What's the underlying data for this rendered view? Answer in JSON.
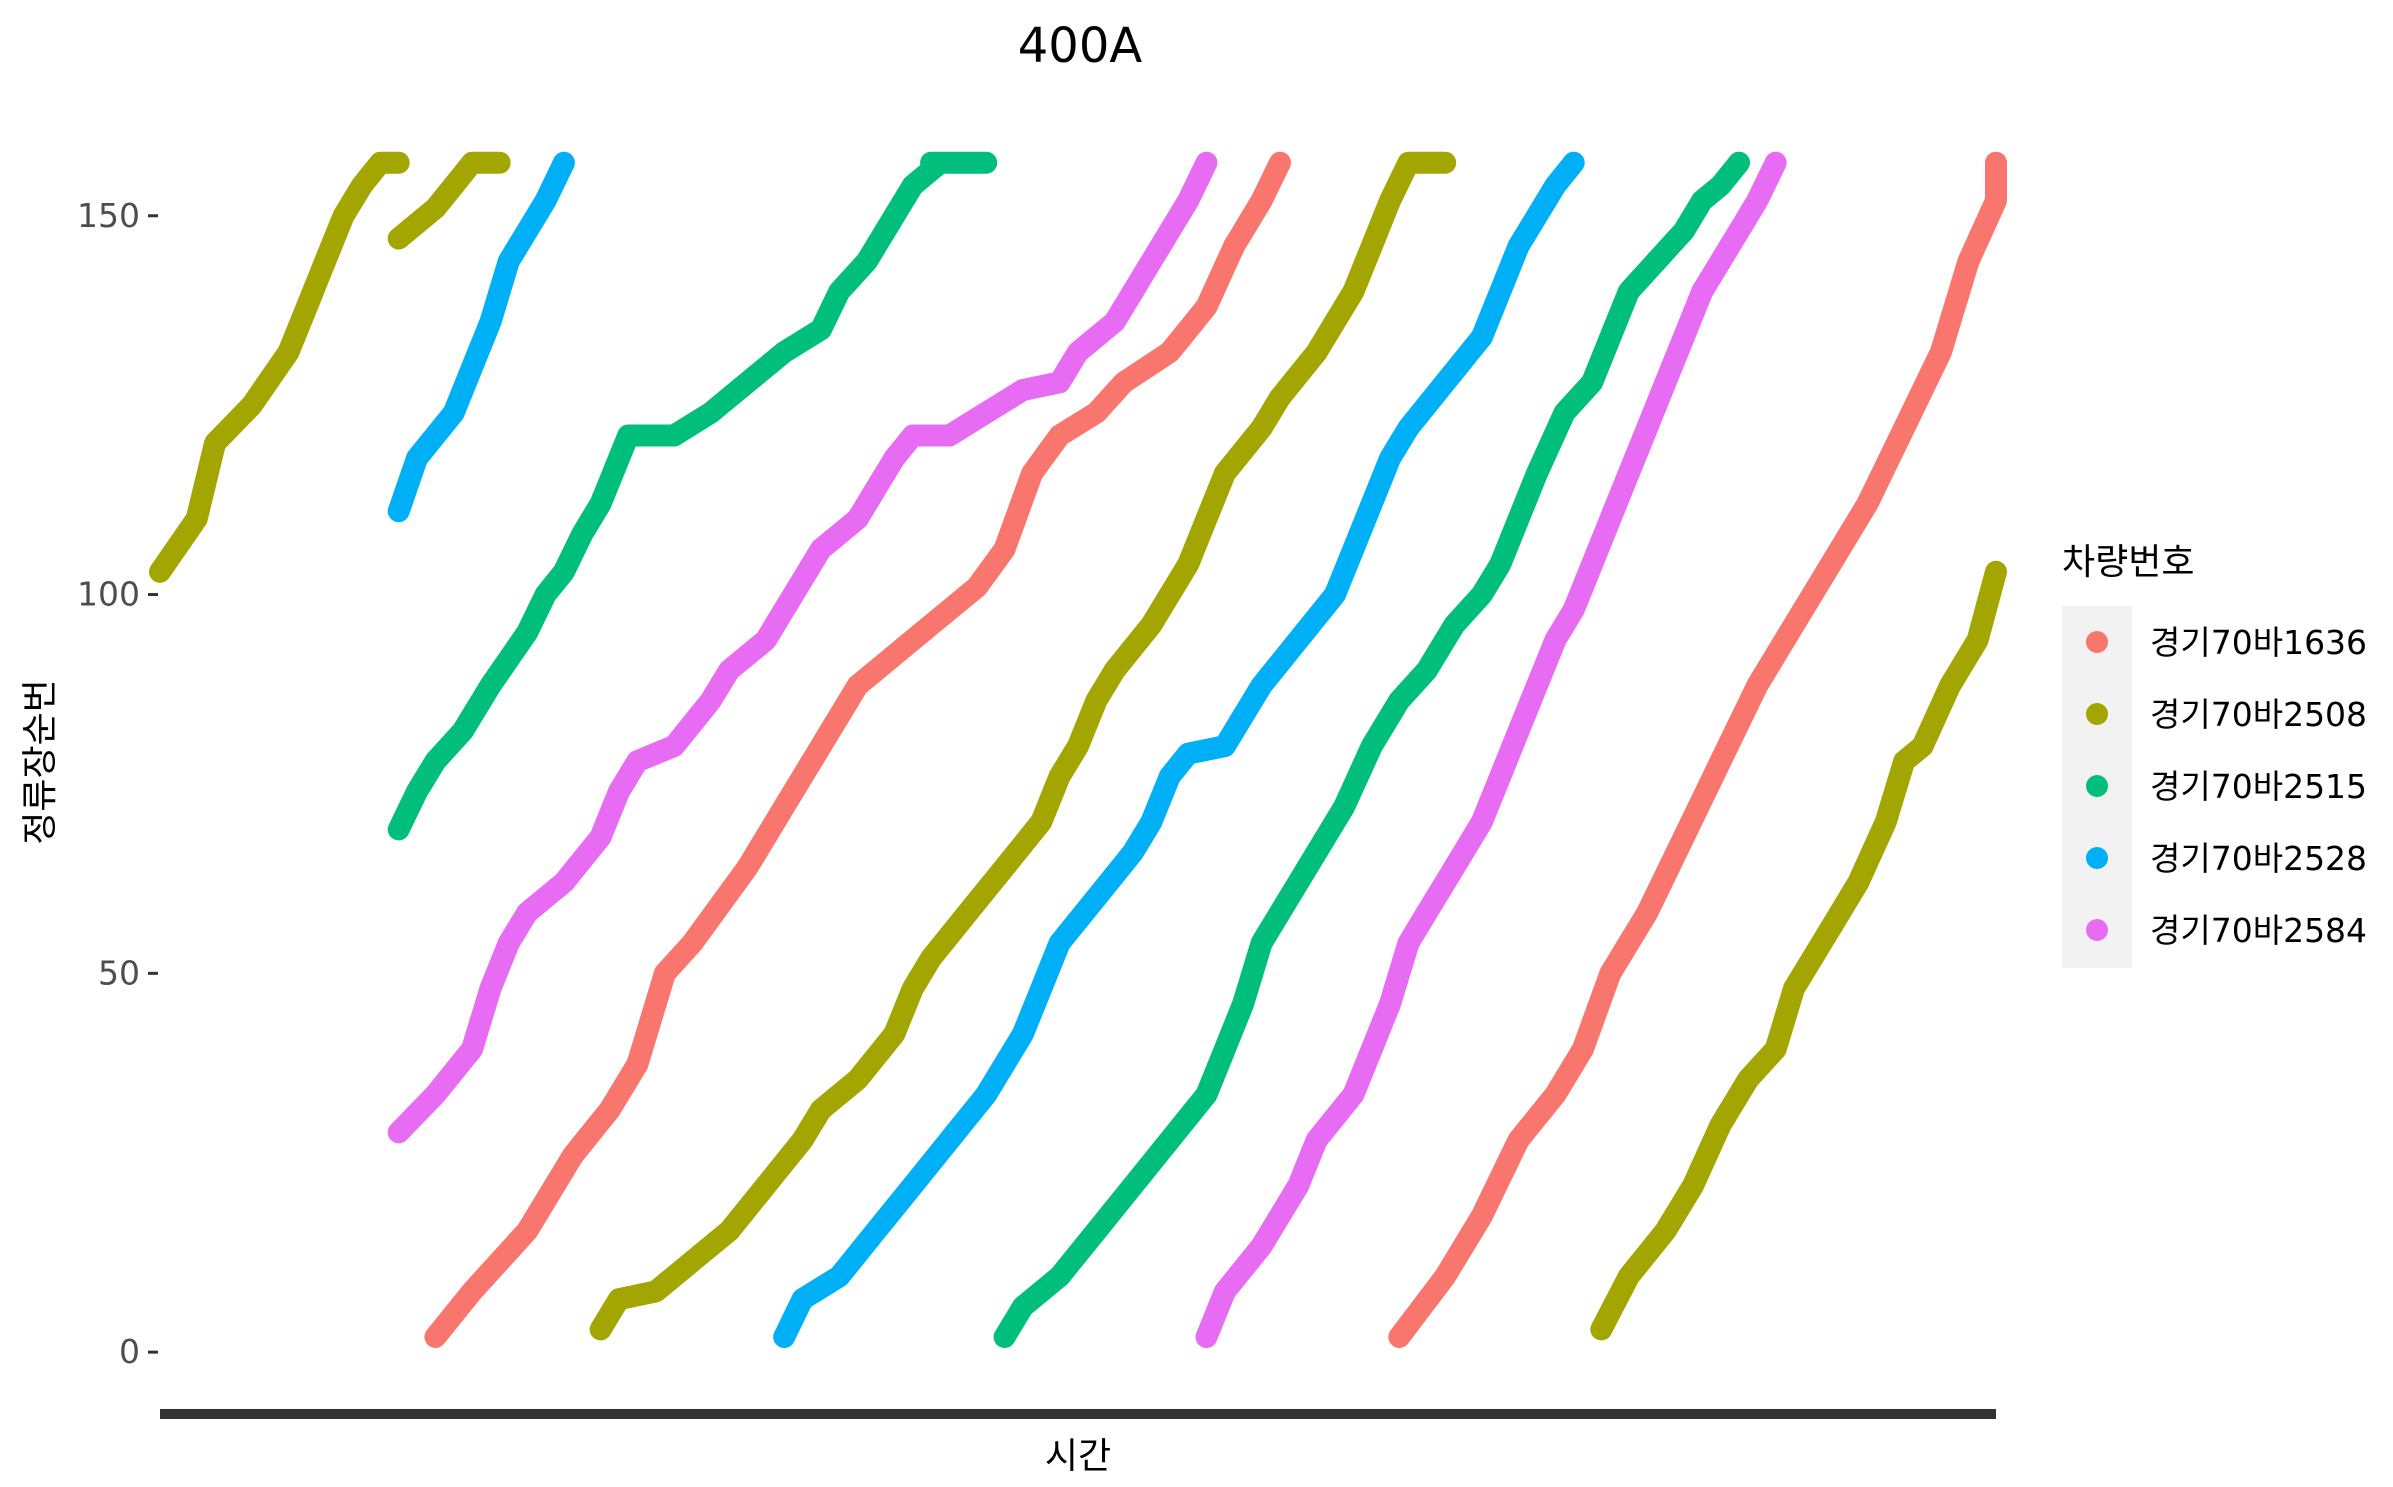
{
  "chart_data": {
    "type": "scatter",
    "title": "400A",
    "xlabel": "시간",
    "ylabel": "정류장순번",
    "ylim": [
      -5,
      160
    ],
    "yticks": [
      0,
      50,
      100,
      150
    ],
    "ytick_labels": [
      "0",
      "50",
      "100",
      "150"
    ],
    "xlim": [
      0,
      1
    ],
    "grid": false,
    "legend": {
      "title": "차량번호",
      "placement": "right"
    },
    "series": [
      {
        "name": "경기70바1636",
        "color": "#F8766D",
        "segments": [
          [
            [
              0.15,
              2
            ],
            [
              0.17,
              8
            ],
            [
              0.2,
              16
            ],
            [
              0.225,
              26
            ],
            [
              0.245,
              32
            ],
            [
              0.26,
              38
            ],
            [
              0.275,
              50
            ],
            [
              0.29,
              54
            ],
            [
              0.32,
              64
            ],
            [
              0.34,
              72
            ],
            [
              0.36,
              80
            ],
            [
              0.38,
              88
            ],
            [
              0.4,
              92
            ],
            [
              0.42,
              96
            ],
            [
              0.445,
              101
            ],
            [
              0.46,
              106
            ],
            [
              0.475,
              116
            ],
            [
              0.49,
              121
            ],
            [
              0.51,
              124
            ],
            [
              0.525,
              128
            ],
            [
              0.55,
              132
            ],
            [
              0.57,
              138
            ],
            [
              0.585,
              146
            ],
            [
              0.6,
              152
            ],
            [
              0.61,
              157
            ]
          ],
          [
            [
              0.675,
              2
            ],
            [
              0.7,
              10
            ],
            [
              0.72,
              18
            ],
            [
              0.74,
              28
            ],
            [
              0.76,
              34
            ],
            [
              0.775,
              40
            ],
            [
              0.79,
              50
            ],
            [
              0.8,
              54
            ],
            [
              0.81,
              58
            ],
            [
              0.83,
              68
            ],
            [
              0.85,
              78
            ],
            [
              0.87,
              88
            ],
            [
              0.89,
              96
            ],
            [
              0.91,
              104
            ],
            [
              0.93,
              112
            ],
            [
              0.95,
              122
            ],
            [
              0.97,
              132
            ],
            [
              0.985,
              144
            ],
            [
              1.0,
              152
            ],
            [
              1.0,
              157
            ]
          ]
        ]
      },
      {
        "name": "경기70바2508",
        "color": "#A3A500",
        "segments": [
          [
            [
              0.0,
              103
            ],
            [
              0.02,
              110
            ],
            [
              0.03,
              120
            ],
            [
              0.05,
              125
            ],
            [
              0.07,
              132
            ],
            [
              0.08,
              138
            ],
            [
              0.09,
              144
            ],
            [
              0.1,
              150
            ],
            [
              0.11,
              154
            ],
            [
              0.12,
              157
            ],
            [
              0.13,
              157
            ]
          ],
          [
            [
              0.13,
              147
            ],
            [
              0.15,
              151
            ],
            [
              0.16,
              154
            ],
            [
              0.17,
              157
            ],
            [
              0.185,
              157
            ]
          ],
          [
            [
              0.24,
              3
            ],
            [
              0.25,
              7
            ],
            [
              0.27,
              8
            ],
            [
              0.29,
              12
            ],
            [
              0.31,
              16
            ],
            [
              0.33,
              22
            ],
            [
              0.35,
              28
            ],
            [
              0.36,
              32
            ],
            [
              0.38,
              36
            ],
            [
              0.4,
              42
            ],
            [
              0.41,
              48
            ],
            [
              0.42,
              52
            ],
            [
              0.44,
              58
            ],
            [
              0.46,
              64
            ],
            [
              0.48,
              70
            ],
            [
              0.49,
              76
            ],
            [
              0.5,
              80
            ],
            [
              0.51,
              86
            ],
            [
              0.52,
              90
            ],
            [
              0.54,
              96
            ],
            [
              0.56,
              104
            ],
            [
              0.57,
              110
            ],
            [
              0.58,
              116
            ],
            [
              0.6,
              122
            ],
            [
              0.61,
              126
            ],
            [
              0.63,
              132
            ],
            [
              0.65,
              140
            ],
            [
              0.66,
              146
            ],
            [
              0.67,
              152
            ],
            [
              0.68,
              157
            ],
            [
              0.7,
              157
            ]
          ],
          [
            [
              0.785,
              3
            ],
            [
              0.8,
              10
            ],
            [
              0.82,
              16
            ],
            [
              0.835,
              22
            ],
            [
              0.85,
              30
            ],
            [
              0.865,
              36
            ],
            [
              0.88,
              40
            ],
            [
              0.89,
              48
            ],
            [
              0.91,
              56
            ],
            [
              0.925,
              62
            ],
            [
              0.94,
              70
            ],
            [
              0.95,
              78
            ],
            [
              0.96,
              80
            ],
            [
              0.975,
              88
            ],
            [
              0.99,
              94
            ],
            [
              1.0,
              103
            ]
          ]
        ]
      },
      {
        "name": "경기70바2515",
        "color": "#00BF7D",
        "segments": [
          [
            [
              0.13,
              69
            ],
            [
              0.14,
              74
            ],
            [
              0.15,
              78
            ],
            [
              0.165,
              82
            ],
            [
              0.18,
              88
            ],
            [
              0.2,
              95
            ],
            [
              0.21,
              100
            ],
            [
              0.22,
              103
            ],
            [
              0.23,
              108
            ],
            [
              0.24,
              112
            ],
            [
              0.25,
              118
            ],
            [
              0.255,
              121
            ],
            [
              0.28,
              121
            ],
            [
              0.3,
              124
            ],
            [
              0.32,
              128
            ],
            [
              0.34,
              132
            ],
            [
              0.36,
              135
            ],
            [
              0.37,
              140
            ],
            [
              0.385,
              144
            ],
            [
              0.4,
              150
            ],
            [
              0.41,
              154
            ],
            [
              0.425,
              157
            ],
            [
              0.42,
              157
            ],
            [
              0.45,
              157
            ]
          ],
          [
            [
              0.46,
              2
            ],
            [
              0.47,
              6
            ],
            [
              0.49,
              10
            ],
            [
              0.51,
              16
            ],
            [
              0.53,
              22
            ],
            [
              0.55,
              28
            ],
            [
              0.57,
              34
            ],
            [
              0.58,
              40
            ],
            [
              0.59,
              46
            ],
            [
              0.6,
              54
            ],
            [
              0.615,
              60
            ],
            [
              0.63,
              66
            ],
            [
              0.645,
              72
            ],
            [
              0.66,
              80
            ],
            [
              0.675,
              86
            ],
            [
              0.69,
              90
            ],
            [
              0.705,
              96
            ],
            [
              0.72,
              100
            ],
            [
              0.73,
              104
            ],
            [
              0.74,
              110
            ],
            [
              0.75,
              116
            ],
            [
              0.765,
              124
            ],
            [
              0.78,
              128
            ],
            [
              0.79,
              134
            ],
            [
              0.8,
              140
            ],
            [
              0.815,
              144
            ],
            [
              0.83,
              148
            ],
            [
              0.84,
              152
            ],
            [
              0.85,
              154
            ],
            [
              0.86,
              157
            ]
          ]
        ]
      },
      {
        "name": "경기70바2528",
        "color": "#00B0F6",
        "segments": [
          [
            [
              0.13,
              111
            ],
            [
              0.14,
              118
            ],
            [
              0.16,
              124
            ],
            [
              0.17,
              130
            ],
            [
              0.18,
              136
            ],
            [
              0.19,
              144
            ],
            [
              0.2,
              148
            ],
            [
              0.21,
              152
            ],
            [
              0.22,
              157
            ]
          ],
          [
            [
              0.34,
              2
            ],
            [
              0.35,
              7
            ],
            [
              0.37,
              10
            ],
            [
              0.39,
              16
            ],
            [
              0.41,
              22
            ],
            [
              0.43,
              28
            ],
            [
              0.45,
              34
            ],
            [
              0.47,
              42
            ],
            [
              0.48,
              48
            ],
            [
              0.49,
              54
            ],
            [
              0.51,
              60
            ],
            [
              0.53,
              66
            ],
            [
              0.54,
              70
            ],
            [
              0.55,
              76
            ],
            [
              0.56,
              79
            ],
            [
              0.58,
              80
            ],
            [
              0.59,
              84
            ],
            [
              0.6,
              88
            ],
            [
              0.62,
              94
            ],
            [
              0.64,
              100
            ],
            [
              0.65,
              106
            ],
            [
              0.66,
              112
            ],
            [
              0.67,
              118
            ],
            [
              0.68,
              122
            ],
            [
              0.7,
              128
            ],
            [
              0.72,
              134
            ],
            [
              0.73,
              140
            ],
            [
              0.74,
              146
            ],
            [
              0.75,
              150
            ],
            [
              0.76,
              154
            ],
            [
              0.77,
              157
            ]
          ]
        ]
      },
      {
        "name": "경기70바2584",
        "color": "#E76BF3",
        "segments": [
          [
            [
              0.13,
              29
            ],
            [
              0.15,
              34
            ],
            [
              0.17,
              40
            ],
            [
              0.18,
              48
            ],
            [
              0.19,
              54
            ],
            [
              0.2,
              58
            ],
            [
              0.22,
              62
            ],
            [
              0.24,
              68
            ],
            [
              0.25,
              74
            ],
            [
              0.26,
              78
            ],
            [
              0.28,
              80
            ],
            [
              0.3,
              86
            ],
            [
              0.31,
              90
            ],
            [
              0.33,
              94
            ],
            [
              0.34,
              98
            ],
            [
              0.35,
              102
            ],
            [
              0.36,
              106
            ],
            [
              0.38,
              110
            ],
            [
              0.39,
              114
            ],
            [
              0.4,
              118
            ],
            [
              0.41,
              121
            ],
            [
              0.43,
              121
            ],
            [
              0.45,
              124
            ],
            [
              0.47,
              127
            ],
            [
              0.49,
              128
            ],
            [
              0.5,
              132
            ],
            [
              0.52,
              136
            ],
            [
              0.53,
              140
            ],
            [
              0.54,
              144
            ],
            [
              0.55,
              148
            ],
            [
              0.56,
              152
            ],
            [
              0.57,
              157
            ]
          ],
          [
            [
              0.57,
              2
            ],
            [
              0.58,
              8
            ],
            [
              0.6,
              14
            ],
            [
              0.62,
              22
            ],
            [
              0.63,
              28
            ],
            [
              0.65,
              34
            ],
            [
              0.66,
              40
            ],
            [
              0.67,
              46
            ],
            [
              0.68,
              54
            ],
            [
              0.69,
              58
            ],
            [
              0.7,
              62
            ],
            [
              0.71,
              66
            ],
            [
              0.72,
              70
            ],
            [
              0.73,
              76
            ],
            [
              0.74,
              82
            ],
            [
              0.75,
              88
            ],
            [
              0.76,
              94
            ],
            [
              0.77,
              98
            ],
            [
              0.78,
              104
            ],
            [
              0.79,
              110
            ],
            [
              0.8,
              116
            ],
            [
              0.81,
              122
            ],
            [
              0.82,
              128
            ],
            [
              0.83,
              134
            ],
            [
              0.84,
              140
            ],
            [
              0.85,
              144
            ],
            [
              0.86,
              148
            ],
            [
              0.87,
              152
            ],
            [
              0.88,
              157
            ]
          ]
        ]
      }
    ]
  }
}
